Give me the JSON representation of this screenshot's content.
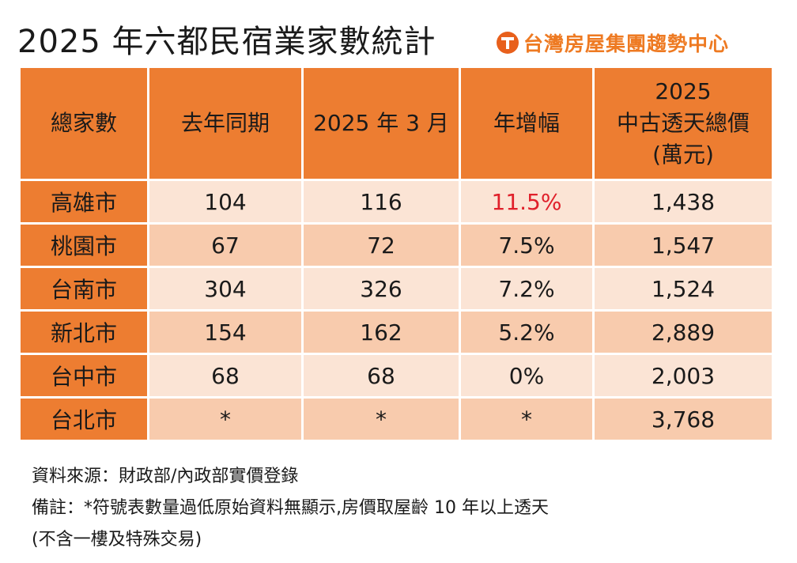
{
  "title": "2025 年六都民宿業家數統計",
  "logo": {
    "text": "台灣房屋集團趨勢中心",
    "icon": "taiwan-realty-logo-icon"
  },
  "colors": {
    "header": "#ed7d31",
    "row_light": "#fbe4d5",
    "row_dark": "#f8cbad",
    "highlight": "#e0202a"
  },
  "table": {
    "headers": [
      "總家數",
      "去年同期",
      "2025 年 3 月",
      "年增幅"
    ],
    "last_header": [
      "2025",
      "中古透天總價",
      "(萬元)"
    ],
    "rows": [
      {
        "city": "高雄市",
        "last_year": "104",
        "mar_2025": "116",
        "growth": "11.5%",
        "price": "1,438"
      },
      {
        "city": "桃園市",
        "last_year": "67",
        "mar_2025": "72",
        "growth": "7.5%",
        "price": "1,547"
      },
      {
        "city": "台南市",
        "last_year": "304",
        "mar_2025": "326",
        "growth": "7.2%",
        "price": "1,524"
      },
      {
        "city": "新北市",
        "last_year": "154",
        "mar_2025": "162",
        "growth": "5.2%",
        "price": "2,889"
      },
      {
        "city": "台中市",
        "last_year": "68",
        "mar_2025": "68",
        "growth": "0%",
        "price": "2,003"
      },
      {
        "city": "台北市",
        "last_year": "*",
        "mar_2025": "*",
        "growth": "*",
        "price": "3,768"
      }
    ]
  },
  "notes": {
    "source": "資料來源：財政部/內政部實價登錄",
    "remark": "備註：*符號表數量過低原始資料無顯示,房價取屋齡 10 年以上透天",
    "remark2": "(不含一樓及特殊交易)"
  }
}
